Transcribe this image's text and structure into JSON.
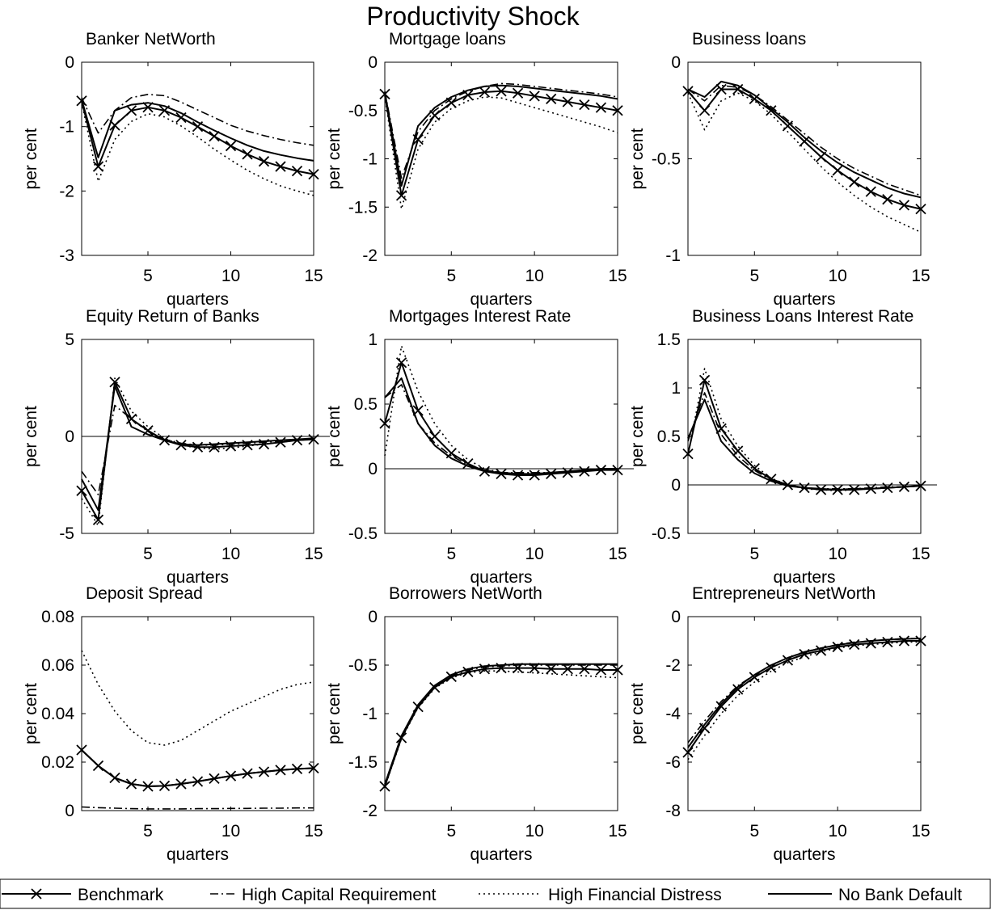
{
  "figure": {
    "title": "Productivity Shock"
  },
  "legend": [
    {
      "key": "benchmark",
      "label": "Benchmark",
      "style": "solid-x"
    },
    {
      "key": "highcap",
      "label": "High Capital Requirement",
      "style": "dashdot"
    },
    {
      "key": "highfd",
      "label": "High Financial Distress",
      "style": "dotted"
    },
    {
      "key": "nodefault",
      "label": "No Bank Default",
      "style": "solid"
    }
  ],
  "chart_data": [
    {
      "type": "line",
      "title": "Banker NetWorth",
      "xlabel": "quarters",
      "ylabel": "per cent",
      "xlim": [
        1,
        15
      ],
      "ylim": [
        -3,
        0
      ],
      "xticks": [
        5,
        10,
        15
      ],
      "yticks": [
        0,
        -1,
        -2,
        -3
      ],
      "ytick_labels": [
        "0",
        "-1",
        "-2",
        "-3"
      ],
      "zero_line": false,
      "x": [
        1,
        2,
        3,
        4,
        5,
        6,
        7,
        8,
        9,
        10,
        11,
        12,
        13,
        14,
        15
      ],
      "series": [
        {
          "key": "benchmark",
          "values": [
            -0.6,
            -1.62,
            -0.98,
            -0.75,
            -0.7,
            -0.75,
            -0.86,
            -1.0,
            -1.15,
            -1.3,
            -1.43,
            -1.54,
            -1.62,
            -1.69,
            -1.74
          ]
        },
        {
          "key": "highcap",
          "values": [
            -0.55,
            -1.1,
            -0.75,
            -0.55,
            -0.5,
            -0.52,
            -0.62,
            -0.74,
            -0.86,
            -0.98,
            -1.07,
            -1.14,
            -1.2,
            -1.25,
            -1.29
          ]
        },
        {
          "key": "highfd",
          "values": [
            -0.62,
            -1.85,
            -1.2,
            -0.92,
            -0.8,
            -0.85,
            -0.99,
            -1.16,
            -1.35,
            -1.52,
            -1.68,
            -1.81,
            -1.92,
            -2.0,
            -2.07
          ]
        },
        {
          "key": "nodefault",
          "values": [
            -0.58,
            -1.48,
            -0.75,
            -0.66,
            -0.63,
            -0.68,
            -0.79,
            -0.93,
            -1.06,
            -1.18,
            -1.29,
            -1.38,
            -1.44,
            -1.49,
            -1.53
          ]
        }
      ]
    },
    {
      "type": "line",
      "title": "Mortgage loans",
      "xlabel": "quarters",
      "ylabel": "per cent",
      "xlim": [
        1,
        15
      ],
      "ylim": [
        -2,
        0
      ],
      "xticks": [
        5,
        10,
        15
      ],
      "yticks": [
        0,
        -0.5,
        -1,
        -1.5,
        -2
      ],
      "ytick_labels": [
        "0",
        "-0.5",
        "-1",
        "-1.5",
        "-2"
      ],
      "zero_line": false,
      "x": [
        1,
        2,
        3,
        4,
        5,
        6,
        7,
        8,
        9,
        10,
        11,
        12,
        13,
        14,
        15
      ],
      "series": [
        {
          "key": "benchmark",
          "values": [
            -0.33,
            -1.38,
            -0.8,
            -0.55,
            -0.42,
            -0.34,
            -0.31,
            -0.3,
            -0.32,
            -0.35,
            -0.38,
            -0.41,
            -0.44,
            -0.47,
            -0.5
          ]
        },
        {
          "key": "highcap",
          "values": [
            -0.3,
            -1.2,
            -0.72,
            -0.5,
            -0.38,
            -0.3,
            -0.25,
            -0.22,
            -0.23,
            -0.25,
            -0.27,
            -0.29,
            -0.31,
            -0.33,
            -0.36
          ]
        },
        {
          "key": "highfd",
          "values": [
            -0.35,
            -1.52,
            -0.9,
            -0.62,
            -0.48,
            -0.4,
            -0.36,
            -0.37,
            -0.42,
            -0.47,
            -0.52,
            -0.57,
            -0.62,
            -0.67,
            -0.73
          ]
        },
        {
          "key": "nodefault",
          "values": [
            -0.31,
            -1.28,
            -0.66,
            -0.47,
            -0.36,
            -0.29,
            -0.25,
            -0.24,
            -0.25,
            -0.27,
            -0.29,
            -0.31,
            -0.33,
            -0.35,
            -0.38
          ]
        }
      ]
    },
    {
      "type": "line",
      "title": "Business loans",
      "xlabel": "quarters",
      "ylabel": "per cent",
      "xlim": [
        1,
        15
      ],
      "ylim": [
        -1,
        0
      ],
      "xticks": [
        5,
        10,
        15
      ],
      "yticks": [
        0,
        -0.5,
        -1
      ],
      "ytick_labels": [
        "0",
        "-0.5",
        "-1"
      ],
      "zero_line": false,
      "x": [
        1,
        2,
        3,
        4,
        5,
        6,
        7,
        8,
        9,
        10,
        11,
        12,
        13,
        14,
        15
      ],
      "series": [
        {
          "key": "benchmark",
          "values": [
            -0.15,
            -0.25,
            -0.14,
            -0.14,
            -0.19,
            -0.25,
            -0.33,
            -0.41,
            -0.49,
            -0.56,
            -0.62,
            -0.67,
            -0.71,
            -0.74,
            -0.76
          ]
        },
        {
          "key": "highcap",
          "values": [
            -0.14,
            -0.2,
            -0.12,
            -0.13,
            -0.17,
            -0.23,
            -0.3,
            -0.37,
            -0.44,
            -0.5,
            -0.55,
            -0.59,
            -0.63,
            -0.66,
            -0.69
          ]
        },
        {
          "key": "highfd",
          "values": [
            -0.16,
            -0.35,
            -0.2,
            -0.16,
            -0.2,
            -0.27,
            -0.36,
            -0.45,
            -0.54,
            -0.62,
            -0.69,
            -0.75,
            -0.8,
            -0.84,
            -0.88
          ]
        },
        {
          "key": "nodefault",
          "values": [
            -0.14,
            -0.18,
            -0.1,
            -0.12,
            -0.17,
            -0.24,
            -0.31,
            -0.39,
            -0.46,
            -0.52,
            -0.57,
            -0.61,
            -0.65,
            -0.68,
            -0.7
          ]
        }
      ]
    },
    {
      "type": "line",
      "title": "Equity Return of Banks",
      "xlabel": "quarters",
      "ylabel": "per cent",
      "xlim": [
        1,
        15
      ],
      "ylim": [
        -5,
        5
      ],
      "xticks": [
        5,
        10,
        15
      ],
      "yticks": [
        5,
        0,
        -5
      ],
      "ytick_labels": [
        "5",
        "0",
        "-5"
      ],
      "zero_line": true,
      "x": [
        1,
        2,
        3,
        4,
        5,
        6,
        7,
        8,
        9,
        10,
        11,
        12,
        13,
        14,
        15
      ],
      "series": [
        {
          "key": "benchmark",
          "values": [
            -2.8,
            -4.3,
            2.8,
            0.9,
            0.3,
            -0.2,
            -0.45,
            -0.55,
            -0.55,
            -0.5,
            -0.45,
            -0.4,
            -0.3,
            -0.2,
            -0.15
          ]
        },
        {
          "key": "highcap",
          "values": [
            -1.8,
            -3.0,
            1.6,
            0.9,
            0.25,
            -0.15,
            -0.35,
            -0.45,
            -0.45,
            -0.4,
            -0.35,
            -0.3,
            -0.25,
            -0.2,
            -0.15
          ]
        },
        {
          "key": "highfd",
          "values": [
            -3.2,
            -4.6,
            3.0,
            1.3,
            0.5,
            -0.1,
            -0.45,
            -0.6,
            -0.65,
            -0.6,
            -0.5,
            -0.4,
            -0.3,
            -0.2,
            -0.15
          ]
        },
        {
          "key": "nodefault",
          "values": [
            -2.2,
            -3.8,
            2.6,
            0.5,
            0.1,
            -0.2,
            -0.4,
            -0.45,
            -0.4,
            -0.35,
            -0.3,
            -0.25,
            -0.2,
            -0.15,
            -0.1
          ]
        }
      ]
    },
    {
      "type": "line",
      "title": "Mortgages Interest Rate",
      "xlabel": "quarters",
      "ylabel": "per cent",
      "xlim": [
        1,
        15
      ],
      "ylim": [
        -0.5,
        1
      ],
      "xticks": [
        5,
        10,
        15
      ],
      "yticks": [
        1,
        0.5,
        0,
        -0.5
      ],
      "ytick_labels": [
        "1",
        "0.5",
        "0",
        "-0.5"
      ],
      "zero_line": true,
      "x": [
        1,
        2,
        3,
        4,
        5,
        6,
        7,
        8,
        9,
        10,
        11,
        12,
        13,
        14,
        15
      ],
      "series": [
        {
          "key": "benchmark",
          "values": [
            0.35,
            0.82,
            0.45,
            0.25,
            0.12,
            0.04,
            -0.02,
            -0.04,
            -0.05,
            -0.05,
            -0.04,
            -0.03,
            -0.02,
            -0.01,
            -0.01
          ]
        },
        {
          "key": "highcap",
          "values": [
            0.55,
            0.65,
            0.35,
            0.2,
            0.1,
            0.03,
            -0.01,
            -0.03,
            -0.03,
            -0.03,
            -0.03,
            -0.02,
            -0.01,
            0.0,
            0.0
          ]
        },
        {
          "key": "highfd",
          "values": [
            0.1,
            0.95,
            0.6,
            0.35,
            0.18,
            0.07,
            0.0,
            -0.03,
            -0.04,
            -0.04,
            -0.03,
            -0.02,
            -0.01,
            0.0,
            0.0
          ]
        },
        {
          "key": "nodefault",
          "values": [
            0.55,
            0.7,
            0.35,
            0.18,
            0.08,
            0.02,
            -0.02,
            -0.03,
            -0.04,
            -0.04,
            -0.03,
            -0.02,
            -0.01,
            0.0,
            0.0
          ]
        }
      ]
    },
    {
      "type": "line",
      "title": "Business Loans Interest Rate",
      "xlabel": "quarters",
      "ylabel": "per cent",
      "xlim": [
        1,
        15
      ],
      "ylim": [
        -0.5,
        1.5
      ],
      "xticks": [
        5,
        10,
        15
      ],
      "yticks": [
        1.5,
        1,
        0.5,
        0,
        -0.5
      ],
      "ytick_labels": [
        "1.5",
        "1",
        "0.5",
        "0",
        "-0.5"
      ],
      "zero_line": true,
      "x": [
        1,
        2,
        3,
        4,
        5,
        6,
        7,
        8,
        9,
        10,
        11,
        12,
        13,
        14,
        15
      ],
      "series": [
        {
          "key": "benchmark",
          "values": [
            0.32,
            1.08,
            0.58,
            0.35,
            0.17,
            0.06,
            0.0,
            -0.03,
            -0.05,
            -0.05,
            -0.05,
            -0.04,
            -0.03,
            -0.02,
            -0.01
          ]
        },
        {
          "key": "highcap",
          "values": [
            0.45,
            0.95,
            0.52,
            0.3,
            0.15,
            0.05,
            0.0,
            -0.03,
            -0.04,
            -0.04,
            -0.04,
            -0.03,
            -0.02,
            -0.02,
            -0.01
          ]
        },
        {
          "key": "highfd",
          "values": [
            0.3,
            1.2,
            0.68,
            0.4,
            0.2,
            0.07,
            0.0,
            -0.04,
            -0.05,
            -0.06,
            -0.05,
            -0.04,
            -0.03,
            -0.02,
            -0.01
          ]
        },
        {
          "key": "nodefault",
          "values": [
            0.48,
            0.88,
            0.45,
            0.26,
            0.12,
            0.04,
            -0.01,
            -0.03,
            -0.04,
            -0.05,
            -0.04,
            -0.04,
            -0.03,
            -0.02,
            -0.01
          ]
        }
      ]
    },
    {
      "type": "line",
      "title": "Deposit Spread",
      "xlabel": "quarters",
      "ylabel": "per cent",
      "xlim": [
        1,
        15
      ],
      "ylim": [
        0,
        0.08
      ],
      "xticks": [
        5,
        10,
        15
      ],
      "yticks": [
        0.08,
        0.06,
        0.04,
        0.02,
        0
      ],
      "ytick_labels": [
        "0.08",
        "0.06",
        "0.04",
        "0.02",
        "0"
      ],
      "zero_line": false,
      "x": [
        1,
        2,
        3,
        4,
        5,
        6,
        7,
        8,
        9,
        10,
        11,
        12,
        13,
        14,
        15
      ],
      "series": [
        {
          "key": "benchmark",
          "values": [
            0.025,
            0.0185,
            0.0135,
            0.011,
            0.01,
            0.0102,
            0.011,
            0.012,
            0.0132,
            0.0143,
            0.0153,
            0.016,
            0.0167,
            0.0172,
            0.0175
          ]
        },
        {
          "key": "highcap",
          "values": [
            0.0015,
            0.0012,
            0.001,
            0.0008,
            0.0007,
            0.0007,
            0.0007,
            0.0008,
            0.0008,
            0.0009,
            0.0009,
            0.001,
            0.001,
            0.0011,
            0.0011
          ]
        },
        {
          "key": "highfd",
          "values": [
            0.066,
            0.052,
            0.041,
            0.033,
            0.028,
            0.027,
            0.029,
            0.033,
            0.037,
            0.041,
            0.044,
            0.047,
            0.05,
            0.052,
            0.053
          ]
        },
        {
          "key": "nodefault",
          "values": [
            0.025,
            0.0185,
            0.0135,
            0.011,
            0.01,
            0.0102,
            0.011,
            0.012,
            0.0132,
            0.0143,
            0.0153,
            0.016,
            0.0167,
            0.0172,
            0.0175
          ]
        }
      ]
    },
    {
      "type": "line",
      "title": "Borrowers NetWorth",
      "xlabel": "quarters",
      "ylabel": "per cent",
      "xlim": [
        1,
        15
      ],
      "ylim": [
        -2,
        0
      ],
      "xticks": [
        5,
        10,
        15
      ],
      "yticks": [
        0,
        -0.5,
        -1,
        -1.5,
        -2
      ],
      "ytick_labels": [
        "0",
        "-0.5",
        "-1",
        "-1.5",
        "-2"
      ],
      "zero_line": false,
      "x": [
        1,
        2,
        3,
        4,
        5,
        6,
        7,
        8,
        9,
        10,
        11,
        12,
        13,
        14,
        15
      ],
      "series": [
        {
          "key": "benchmark",
          "values": [
            -1.75,
            -1.25,
            -0.93,
            -0.73,
            -0.62,
            -0.57,
            -0.54,
            -0.53,
            -0.53,
            -0.53,
            -0.54,
            -0.54,
            -0.54,
            -0.55,
            -0.55
          ]
        },
        {
          "key": "highcap",
          "values": [
            -1.73,
            -1.23,
            -0.92,
            -0.72,
            -0.61,
            -0.55,
            -0.52,
            -0.51,
            -0.5,
            -0.5,
            -0.5,
            -0.5,
            -0.5,
            -0.5,
            -0.5
          ]
        },
        {
          "key": "highfd",
          "values": [
            -1.76,
            -1.26,
            -0.94,
            -0.74,
            -0.63,
            -0.58,
            -0.56,
            -0.56,
            -0.57,
            -0.58,
            -0.59,
            -0.6,
            -0.61,
            -0.62,
            -0.63
          ]
        },
        {
          "key": "nodefault",
          "values": [
            -1.73,
            -1.23,
            -0.91,
            -0.71,
            -0.6,
            -0.54,
            -0.51,
            -0.5,
            -0.49,
            -0.49,
            -0.49,
            -0.49,
            -0.49,
            -0.49,
            -0.49
          ]
        }
      ]
    },
    {
      "type": "line",
      "title": "Entrepreneurs NetWorth",
      "xlabel": "quarters",
      "ylabel": "per cent",
      "xlim": [
        1,
        15
      ],
      "ylim": [
        -8,
        0
      ],
      "xticks": [
        5,
        10,
        15
      ],
      "yticks": [
        0,
        -2,
        -4,
        -6,
        -8
      ],
      "ytick_labels": [
        "0",
        "-2",
        "-4",
        "-6",
        "-8"
      ],
      "zero_line": false,
      "x": [
        1,
        2,
        3,
        4,
        5,
        6,
        7,
        8,
        9,
        10,
        11,
        12,
        13,
        14,
        15
      ],
      "series": [
        {
          "key": "benchmark",
          "values": [
            -5.6,
            -4.6,
            -3.7,
            -3.0,
            -2.5,
            -2.1,
            -1.8,
            -1.55,
            -1.4,
            -1.25,
            -1.15,
            -1.1,
            -1.05,
            -1.0,
            -1.0
          ]
        },
        {
          "key": "highcap",
          "values": [
            -5.2,
            -4.3,
            -3.5,
            -2.85,
            -2.4,
            -2.0,
            -1.7,
            -1.45,
            -1.3,
            -1.15,
            -1.05,
            -1.0,
            -0.95,
            -0.9,
            -0.9
          ]
        },
        {
          "key": "highfd",
          "values": [
            -5.9,
            -4.9,
            -4.0,
            -3.25,
            -2.7,
            -2.25,
            -1.9,
            -1.65,
            -1.45,
            -1.3,
            -1.2,
            -1.15,
            -1.1,
            -1.05,
            -1.05
          ]
        },
        {
          "key": "nodefault",
          "values": [
            -5.4,
            -4.45,
            -3.6,
            -2.9,
            -2.4,
            -2.0,
            -1.7,
            -1.47,
            -1.3,
            -1.17,
            -1.07,
            -1.0,
            -0.95,
            -0.92,
            -0.9
          ]
        }
      ]
    }
  ]
}
